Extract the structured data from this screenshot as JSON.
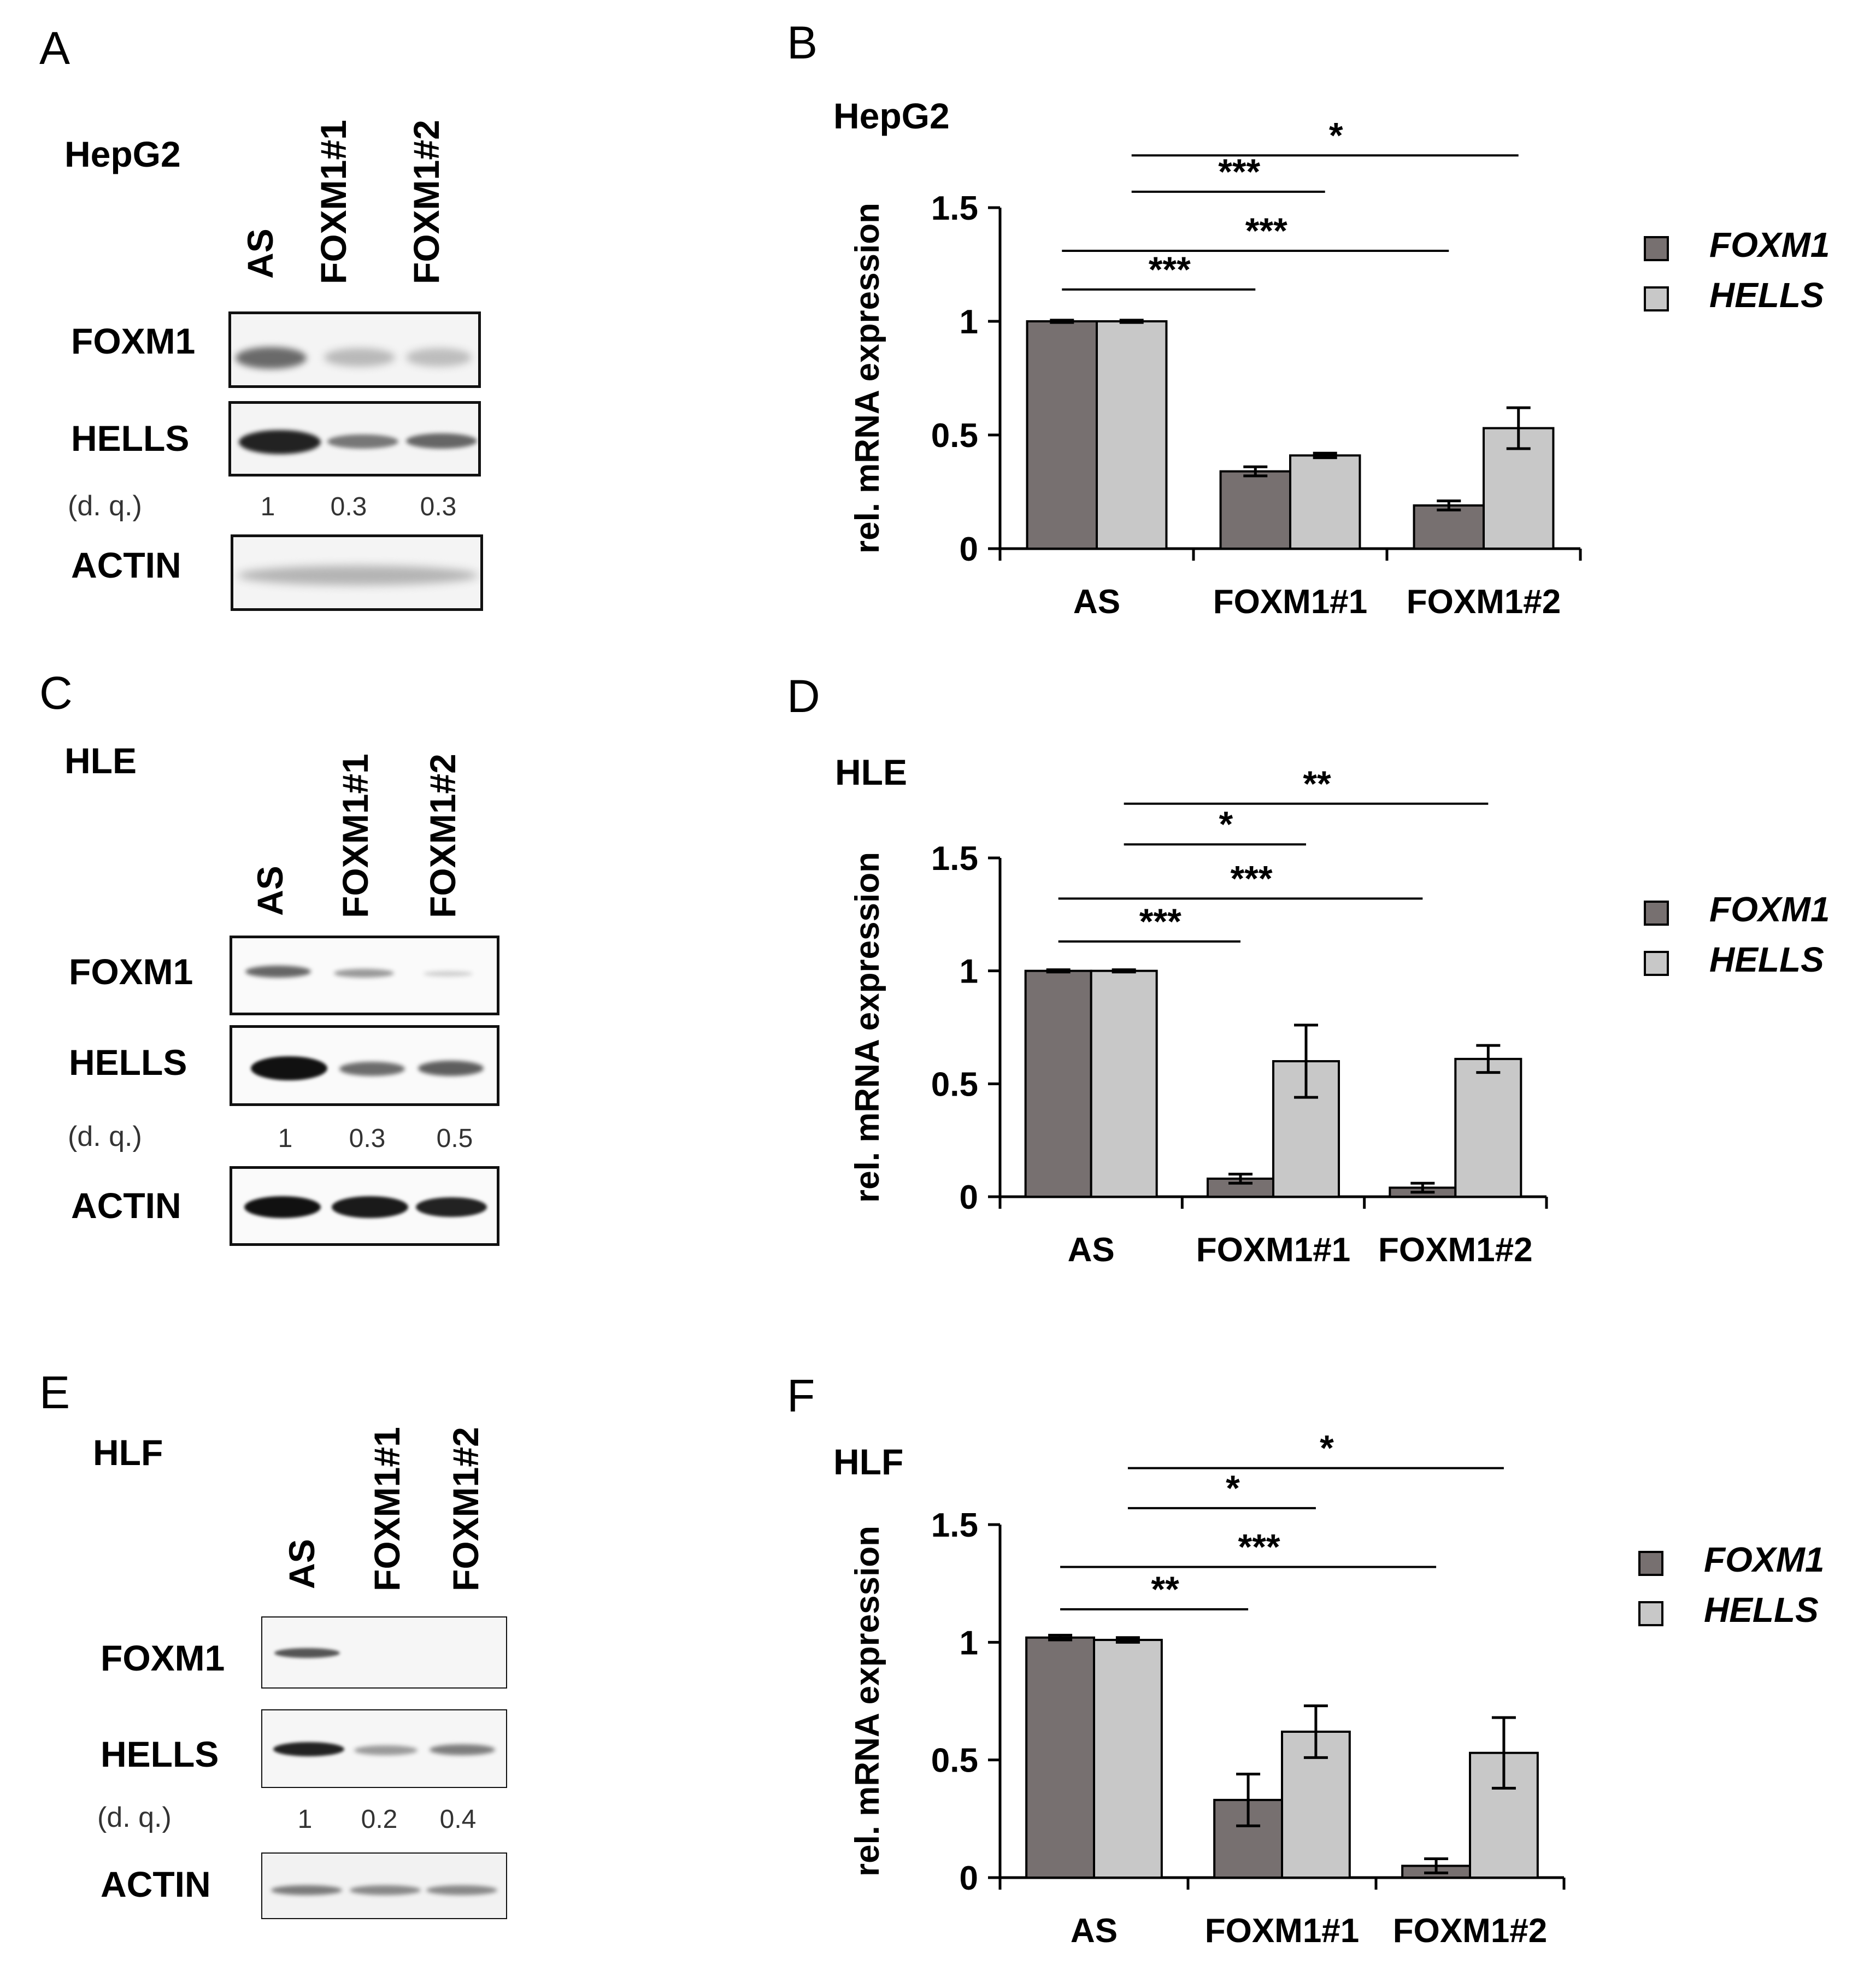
{
  "panels": {
    "a": {
      "letter": "A",
      "cell_line": "HepG2",
      "lanes": [
        "AS",
        "FOXM1#1",
        "FOXM1#2"
      ],
      "rows": [
        "FOXM1",
        "HELLS",
        "ACTIN"
      ],
      "dq_label": "(d. q.)",
      "dq_values": [
        "1",
        "0.3",
        "0.3"
      ]
    },
    "c": {
      "letter": "C",
      "cell_line": "HLE",
      "lanes": [
        "AS",
        "FOXM1#1",
        "FOXM1#2"
      ],
      "rows": [
        "FOXM1",
        "HELLS",
        "ACTIN"
      ],
      "dq_label": "(d. q.)",
      "dq_values": [
        "1",
        "0.3",
        "0.5"
      ]
    },
    "e": {
      "letter": "E",
      "cell_line": "HLF",
      "lanes": [
        "AS",
        "FOXM1#1",
        "FOXM1#2"
      ],
      "rows": [
        "FOXM1",
        "HELLS",
        "ACTIN"
      ],
      "dq_label": "(d. q.)",
      "dq_values": [
        "1",
        "0.2",
        "0.4"
      ]
    },
    "b": {
      "letter": "B"
    },
    "d": {
      "letter": "D"
    },
    "f": {
      "letter": "F"
    }
  },
  "colors": {
    "foxm1_bar": "#777070",
    "hells_bar": "#c8c8c8"
  },
  "chart_data": [
    {
      "type": "bar",
      "title": "HepG2",
      "ylabel": "rel. mRNA expression",
      "ylim": [
        0,
        1.5
      ],
      "yticks": [
        "0",
        "0.5",
        "1",
        "1.5"
      ],
      "categories": [
        "AS",
        "FOXM1#1",
        "FOXM1#2"
      ],
      "series": [
        {
          "name": "FOXM1",
          "values": [
            1.0,
            0.34,
            0.19
          ],
          "errors": [
            0.005,
            0.02,
            0.02
          ]
        },
        {
          "name": "HELLS",
          "values": [
            1.0,
            0.41,
            0.53
          ],
          "errors": [
            0.005,
            0.01,
            0.09
          ]
        }
      ],
      "significance": [
        {
          "label": "*",
          "from": "HELLS AS",
          "to": "HELLS FOXM1#2",
          "y": 1.73
        },
        {
          "label": "***",
          "from": "HELLS AS",
          "to": "HELLS FOXM1#1",
          "y": 1.57
        },
        {
          "label": "***",
          "from": "FOXM1 AS",
          "to": "FOXM1 FOXM1#2",
          "y": 1.31
        },
        {
          "label": "***",
          "from": "FOXM1 AS",
          "to": "FOXM1 FOXM1#1",
          "y": 1.14
        }
      ],
      "legend": [
        "FOXM1",
        "HELLS"
      ],
      "legend_position": "right",
      "grid": false
    },
    {
      "type": "bar",
      "title": "HLE",
      "ylabel": "rel. mRNA expression",
      "ylim": [
        0,
        1.5
      ],
      "yticks": [
        "0",
        "0.5",
        "1",
        "1.5"
      ],
      "categories": [
        "AS",
        "FOXM1#1",
        "FOXM1#2"
      ],
      "series": [
        {
          "name": "FOXM1",
          "values": [
            1.0,
            0.08,
            0.04
          ],
          "errors": [
            0.005,
            0.02,
            0.02
          ]
        },
        {
          "name": "HELLS",
          "values": [
            1.0,
            0.6,
            0.61
          ],
          "errors": [
            0.005,
            0.16,
            0.06
          ]
        }
      ],
      "significance": [
        {
          "label": "**",
          "from": "HELLS AS",
          "to": "HELLS FOXM1#2",
          "y": 1.74
        },
        {
          "label": "*",
          "from": "HELLS AS",
          "to": "HELLS FOXM1#1",
          "y": 1.56
        },
        {
          "label": "***",
          "from": "FOXM1 AS",
          "to": "FOXM1 FOXM1#2",
          "y": 1.32
        },
        {
          "label": "***",
          "from": "FOXM1 AS",
          "to": "FOXM1 FOXM1#1",
          "y": 1.13
        }
      ],
      "legend": [
        "FOXM1",
        "HELLS"
      ],
      "legend_position": "right",
      "grid": false
    },
    {
      "type": "bar",
      "title": "HLF",
      "ylabel": "rel. mRNA expression",
      "ylim": [
        0,
        1.5
      ],
      "yticks": [
        "0",
        "0.5",
        "1",
        "1.5"
      ],
      "categories": [
        "AS",
        "FOXM1#1",
        "FOXM1#2"
      ],
      "series": [
        {
          "name": "FOXM1",
          "values": [
            1.02,
            0.33,
            0.05
          ],
          "errors": [
            0.01,
            0.11,
            0.03
          ]
        },
        {
          "name": "HELLS",
          "values": [
            1.01,
            0.62,
            0.53
          ],
          "errors": [
            0.01,
            0.11,
            0.15
          ]
        }
      ],
      "significance": [
        {
          "label": "*",
          "from": "HELLS AS",
          "to": "HELLS FOXM1#2",
          "y": 1.74
        },
        {
          "label": "*",
          "from": "HELLS AS",
          "to": "HELLS FOXM1#1",
          "y": 1.57
        },
        {
          "label": "***",
          "from": "FOXM1 AS",
          "to": "FOXM1 FOXM1#2",
          "y": 1.32
        },
        {
          "label": "**",
          "from": "FOXM1 AS",
          "to": "FOXM1 FOXM1#1",
          "y": 1.14
        }
      ],
      "legend": [
        "FOXM1",
        "HELLS"
      ],
      "legend_position": "right",
      "grid": false
    }
  ]
}
